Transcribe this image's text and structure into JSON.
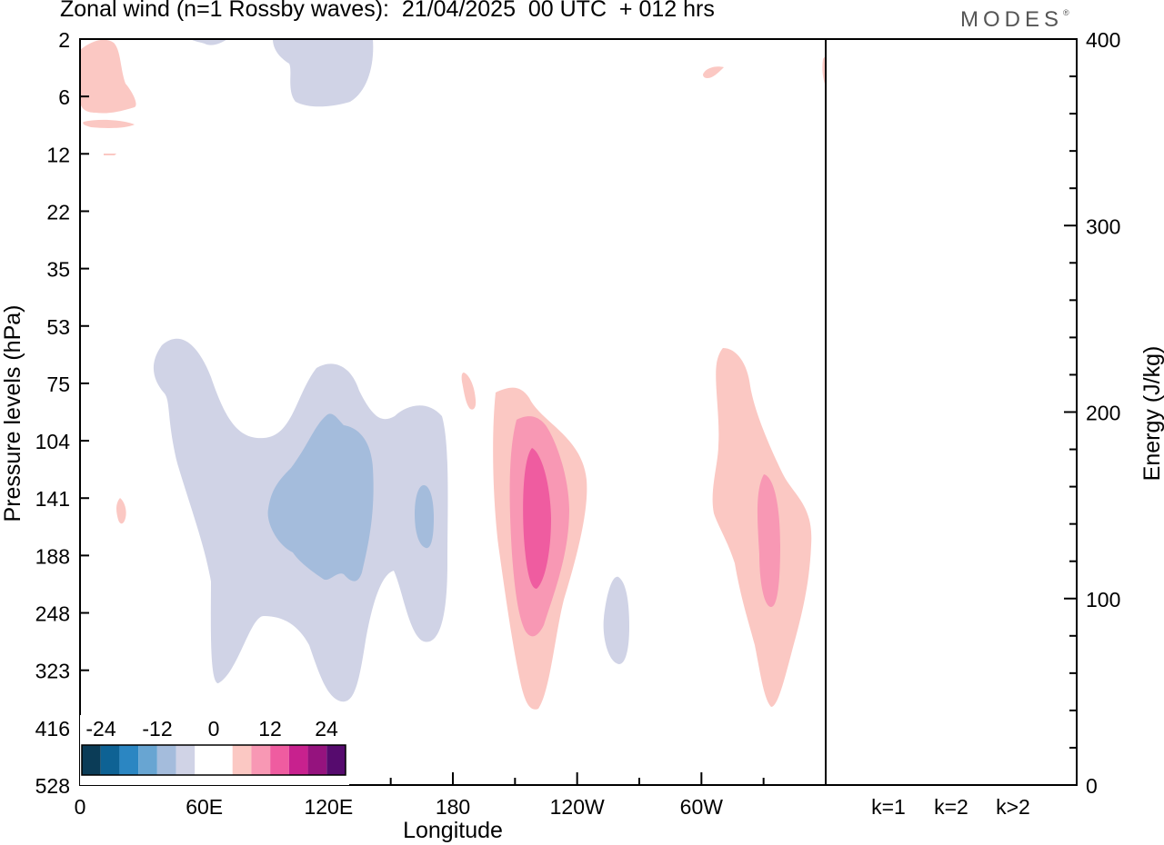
{
  "title": "Zonal wind (n=1 Rossby waves):  21/04/2025  00 UTC  + 012 hrs",
  "brand": "MODES",
  "brand_mark": "®",
  "chart_data": [
    {
      "type": "heatmap",
      "xlabel": "Longitude",
      "ylabel": "Pressure levels (hPa)",
      "x_ticks": [
        "0",
        "60E",
        "120E",
        "180",
        "120W",
        "60W"
      ],
      "y_ticks": [
        "2",
        "6",
        "12",
        "22",
        "35",
        "53",
        "75",
        "104",
        "141",
        "188",
        "248",
        "323",
        "416",
        "528"
      ],
      "colorbar": {
        "labels": [
          "-24",
          "-12",
          "0",
          "12",
          "24"
        ],
        "colors": [
          "#0b3c57",
          "#0e6294",
          "#2b86c2",
          "#68a5d2",
          "#a4bcdc",
          "#d0d3e6",
          "#ffffff",
          "#ffffff",
          "#fbc8c3",
          "#f898b4",
          "#ef5ca0",
          "#c8218e",
          "#95137e",
          "#560b6e"
        ]
      },
      "regions": [
        {
          "color": "#d0d3e6",
          "lon": 128,
          "p": 110
        },
        {
          "color": "#a4bcdc",
          "lon": 118,
          "p": 141
        },
        {
          "color": "#a4bcdc",
          "lon": 166,
          "p": 141
        },
        {
          "color": "#d0d3e6",
          "lon": 148,
          "p": 3
        },
        {
          "color": "#d0d3e6",
          "lon": 232,
          "p": 270
        },
        {
          "color": "#fbc8c3",
          "lon": 210,
          "p": 160
        },
        {
          "color": "#f898b4",
          "lon": 211,
          "p": 155
        },
        {
          "color": "#ef5ca0",
          "lon": 212,
          "p": 150
        },
        {
          "color": "#fbc8c3",
          "lon": 322,
          "p": 180
        },
        {
          "color": "#f898b4",
          "lon": 328,
          "p": 170
        },
        {
          "color": "#fbc8c3",
          "lon": 8,
          "p": 4
        }
      ]
    },
    {
      "type": "bar",
      "ylabel": "Energy (J/kg)",
      "categories": [
        "k=1",
        "k=2",
        "k>2"
      ],
      "values": [
        0.4,
        0.4,
        0.4
      ],
      "ylim": [
        0,
        400
      ],
      "y_ticks": [
        "0",
        "100",
        "200",
        "300",
        "400"
      ]
    }
  ]
}
